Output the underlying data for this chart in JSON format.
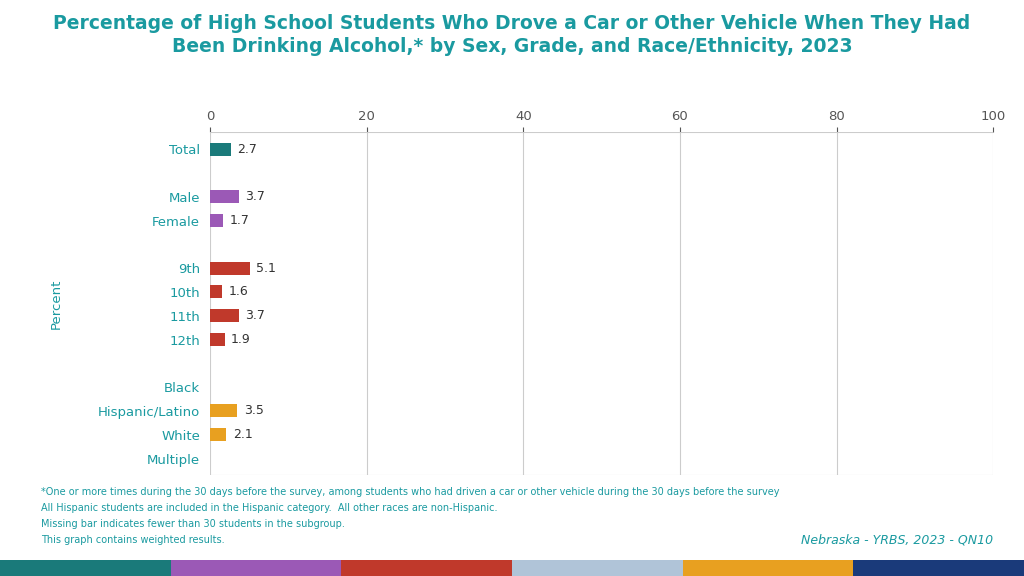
{
  "title_line1": "Percentage of High School Students Who Drove a Car or Other Vehicle When They Had",
  "title_line2": "Been Drinking Alcohol,* by Sex, Grade, and Race/Ethnicity, 2023",
  "title_color": "#1a9aa0",
  "categories": [
    "Total",
    "",
    "Male",
    "Female",
    "",
    "9th",
    "10th",
    "11th",
    "12th",
    "",
    "Black",
    "Hispanic/Latino",
    "White",
    "Multiple"
  ],
  "values": [
    2.7,
    null,
    3.7,
    1.7,
    null,
    5.1,
    1.6,
    3.7,
    1.9,
    null,
    null,
    3.5,
    2.1,
    null
  ],
  "bar_colors": [
    "#1a7a7a",
    null,
    "#9b59b6",
    "#9b59b6",
    null,
    "#c0392b",
    "#c0392b",
    "#c0392b",
    "#c0392b",
    null,
    null,
    "#e8a020",
    "#e8a020",
    null
  ],
  "xlim": [
    0,
    100
  ],
  "xticks": [
    0,
    20,
    40,
    60,
    80,
    100
  ],
  "ylabel": "Percent",
  "ylabel_color": "#1a9aa0",
  "ytick_color": "#1a9aa0",
  "footnote_lines": [
    "*One or more times during the 30 days before the survey, among students who had driven a car or other vehicle during the 30 days before the survey",
    "All Hispanic students are included in the Hispanic category.  All other races are non-Hispanic.",
    "Missing bar indicates fewer than 30 students in the subgroup.",
    "This graph contains weighted results."
  ],
  "footnote_color": "#1a9aa0",
  "watermark": "Nebraska - YRBS, 2023 - QN10",
  "watermark_color": "#1a9aa0",
  "bottom_bar_colors": [
    "#1a7a7a",
    "#9b59b6",
    "#c0392b",
    "#b0c4d8",
    "#e8a020",
    "#1a3a7a"
  ],
  "bar_height": 0.55,
  "background_color": "#ffffff",
  "grid_color": "#cccccc",
  "value_label_color": "#333333",
  "xtick_color": "#555555"
}
